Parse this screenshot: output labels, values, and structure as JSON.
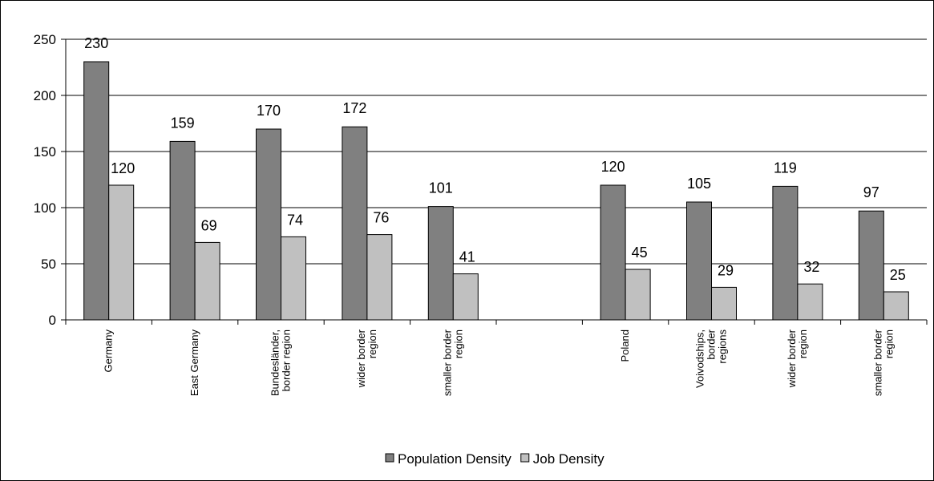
{
  "chart_data": {
    "type": "bar",
    "categories": [
      [
        "Germany"
      ],
      [
        "East Germany"
      ],
      [
        "Bundesländer,",
        "border region"
      ],
      [
        "wider border",
        "region"
      ],
      [
        "smaller border",
        "region"
      ],
      [
        ""
      ],
      [
        "Poland"
      ],
      [
        "Voivodships,",
        "border",
        "regions"
      ],
      [
        "wider border",
        "region"
      ],
      [
        "smaller border",
        "region"
      ]
    ],
    "series": [
      {
        "name": "Population Density",
        "color": "#808080",
        "values": [
          230,
          159,
          170,
          172,
          101,
          null,
          120,
          105,
          119,
          97
        ]
      },
      {
        "name": "Job Density",
        "color": "#c0c0c0",
        "values": [
          120,
          69,
          74,
          76,
          41,
          null,
          45,
          29,
          32,
          25
        ]
      }
    ],
    "ylim": [
      0,
      250
    ],
    "yticks": [
      0,
      50,
      100,
      150,
      200,
      250
    ],
    "grid": true,
    "legend_position": "bottom",
    "title": "",
    "xlabel": "",
    "ylabel": ""
  }
}
